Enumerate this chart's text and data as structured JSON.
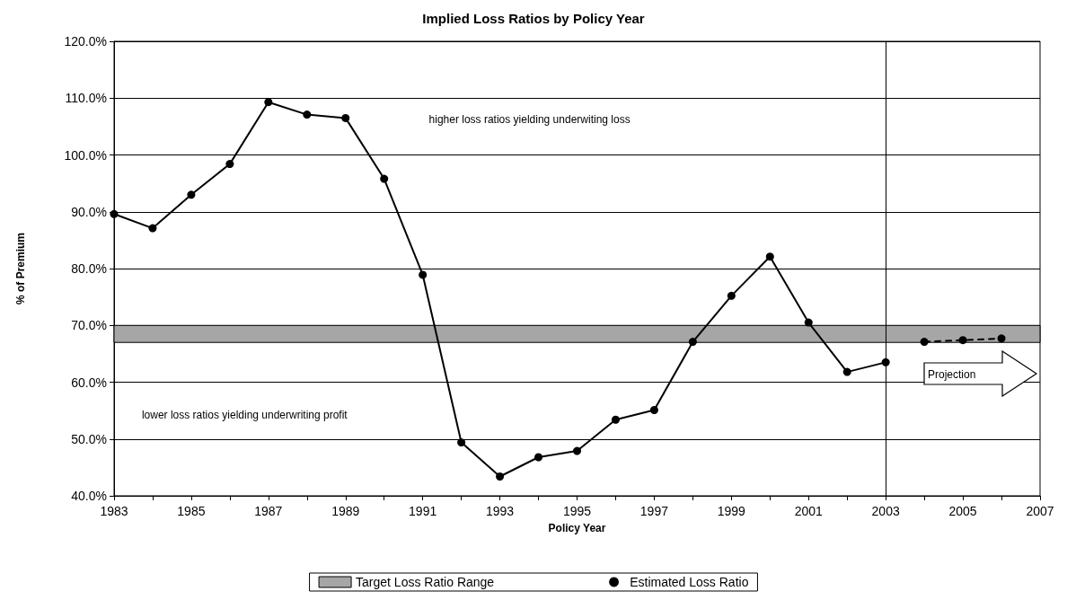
{
  "chart_data": {
    "type": "line",
    "title": "Implied Loss Ratios by Policy Year",
    "xlabel": "Policy Year",
    "ylabel": "% of Premium",
    "series": [
      {
        "name": "Estimated Loss Ratio",
        "color": "#000000",
        "line_style": "solid",
        "x": [
          1983,
          1984,
          1985,
          1986,
          1987,
          1988,
          1989,
          1990,
          1991,
          1992,
          1993,
          1994,
          1995,
          1996,
          1997,
          1998,
          1999,
          2000,
          2001,
          2002,
          2003
        ],
        "values": [
          89.6,
          87.1,
          93.0,
          98.4,
          109.3,
          107.1,
          106.5,
          95.8,
          78.9,
          49.4,
          43.4,
          46.8,
          47.9,
          53.4,
          55.1,
          67.1,
          75.2,
          82.1,
          70.5,
          61.8,
          63.5
        ]
      },
      {
        "color": "#000000",
        "line_style": "dashed",
        "x": [
          2004,
          2005,
          2006
        ],
        "values": [
          67.1,
          67.4,
          67.7
        ]
      }
    ],
    "marker": "circle",
    "xlim": [
      1983,
      2007
    ],
    "xticks": [
      1983,
      {
        "value": 1984,
        "label": null
      },
      1985,
      {
        "value": 1986,
        "label": null
      },
      1987,
      {
        "value": 1988,
        "label": null
      },
      1989,
      {
        "value": 1990,
        "label": null
      },
      1991,
      {
        "value": 1992,
        "label": null
      },
      1993,
      {
        "value": 1994,
        "label": null
      },
      1995,
      {
        "value": 1996,
        "label": null
      },
      1997,
      {
        "value": 1998,
        "label": null
      },
      1999,
      {
        "value": 2000,
        "label": null
      },
      2001,
      {
        "value": 2002,
        "label": null
      },
      2003,
      {
        "value": 2004,
        "label": null
      },
      2005,
      {
        "value": 2006,
        "label": null
      },
      2007
    ],
    "ylim": [
      40,
      120
    ],
    "yticks": [
      {
        "value": 40,
        "label": "40.0%"
      },
      {
        "value": 50,
        "label": "50.0%"
      },
      {
        "value": 60,
        "label": "60.0%"
      },
      {
        "value": 70,
        "label": "70.0%"
      },
      {
        "value": 80,
        "label": "80.0%"
      },
      {
        "value": 90,
        "label": "90.0%"
      },
      {
        "value": 100,
        "label": "100.0%"
      },
      {
        "value": 110,
        "label": "110.0%"
      },
      {
        "value": 120,
        "label": "120.0%"
      }
    ],
    "grid": "y",
    "bands": [
      {
        "axis": "y",
        "from": 67,
        "to": 70,
        "label": "Target Loss Ratio Range",
        "color": "#a6a6a6"
      }
    ],
    "ref_lines": [
      {
        "axis": "x",
        "value": 2003
      }
    ],
    "annotations": [
      "higher loss ratios yielding underwiting loss",
      "lower loss ratios yielding underwriting profit",
      "Projection"
    ],
    "legend": "bottom"
  }
}
